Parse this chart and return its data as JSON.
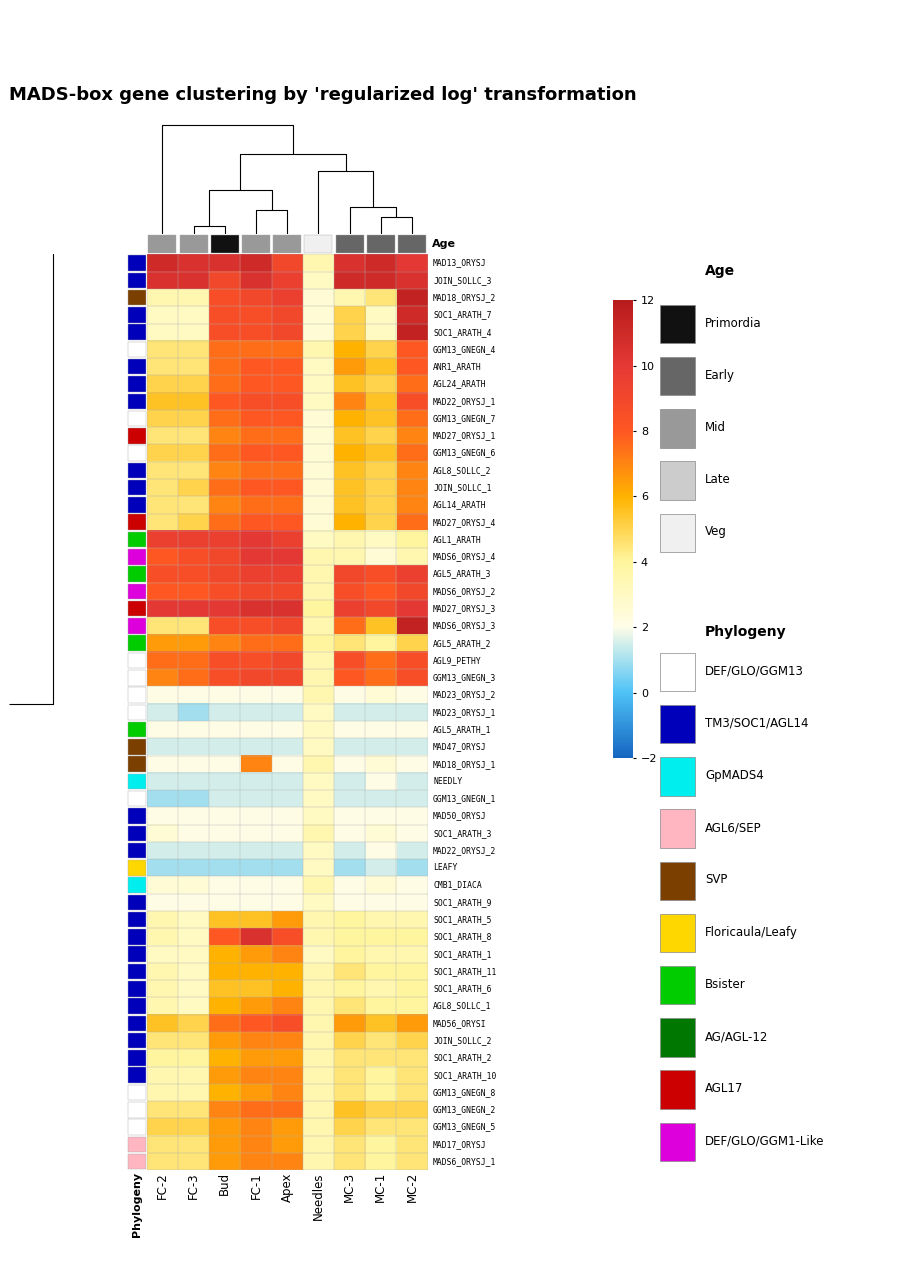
{
  "title": "MADS-box gene clustering by 'regularized log' transformation",
  "columns": [
    "FC-2",
    "FC-3",
    "Bud",
    "FC-1",
    "Apex",
    "Needles",
    "MC-3",
    "MC-1",
    "MC-2"
  ],
  "col_age": [
    "Mid",
    "Mid",
    "Primordia",
    "Mid",
    "Mid",
    "Veg",
    "Early",
    "Early",
    "Early"
  ],
  "genes": [
    "MADS6_ORYSJ_1",
    "MAD17_ORYSJ",
    "GGM13_GNEGN_5",
    "GGM13_GNEGN_2",
    "GGM13_GNEGN_8",
    "SOC1_ARATH_10",
    "SOC1_ARATH_2",
    "JOIN_SOLLC_2",
    "MAD56_ORYSI",
    "AGL8_SOLLC_1",
    "SOC1_ARATH_6",
    "SOC1_ARATH_11",
    "SOC1_ARATH_1",
    "SOC1_ARATH_8",
    "SOC1_ARATH_5",
    "SOC1_ARATH_9",
    "CMB1_DIACA",
    "LEAFY",
    "MAD22_ORYSJ_2",
    "SOC1_ARATH_3",
    "MAD50_ORYSJ",
    "GGM13_GNEGN_1",
    "NEEDLY",
    "MAD18_ORYSJ_1",
    "MAD47_ORYSJ",
    "AGL5_ARATH_1",
    "MAD23_ORYSJ_1",
    "MAD23_ORYSJ_2",
    "GGM13_GNEGN_3",
    "AGL9_PETHY",
    "AGL5_ARATH_2",
    "MADS6_ORYSJ_3",
    "MAD27_ORYSJ_3",
    "MADS6_ORYSJ_2",
    "AGL5_ARATH_3",
    "MADS6_ORYSJ_4",
    "AGL1_ARATH",
    "MAD27_ORYSJ_4",
    "AGL14_ARATH",
    "JOIN_SOLLC_1",
    "AGL8_SOLLC_2",
    "GGM13_GNEGN_6",
    "MAD27_ORYSJ_1",
    "GGM13_GNEGN_7",
    "MAD22_ORYSJ_1",
    "AGL24_ARATH",
    "ANR1_ARATH",
    "GGM13_GNEGN_4",
    "SOC1_ARATH_4",
    "SOC1_ARATH_7",
    "MAD18_ORYSJ_2",
    "JOIN_SOLLC_3",
    "MAD13_ORYSJ"
  ],
  "phylogeny": [
    "AGL6/SEP",
    "AGL6/SEP",
    "DEF/GLO/GGM13",
    "DEF/GLO/GGM13",
    "DEF/GLO/GGM13",
    "TM3/SOC1/AGL14",
    "TM3/SOC1/AGL14",
    "TM3/SOC1/AGL14",
    "TM3/SOC1/AGL14",
    "TM3/SOC1/AGL14",
    "TM3/SOC1/AGL14",
    "TM3/SOC1/AGL14",
    "TM3/SOC1/AGL14",
    "TM3/SOC1/AGL14",
    "TM3/SOC1/AGL14",
    "TM3/SOC1/AGL14",
    "GpMADS4",
    "Floricaula/Leafy",
    "TM3/SOC1/AGL14",
    "TM3/SOC1/AGL14",
    "TM3/SOC1/AGL14",
    "DEF/GLO/GGM13",
    "GpMADS4",
    "SVP",
    "SVP",
    "Bsister",
    "DEF/GLO/GGM13",
    "DEF/GLO/GGM13",
    "DEF/GLO/GGM13",
    "DEF/GLO/GGM13",
    "Bsister",
    "DEF/GLO/GGM1-Like",
    "AGL17",
    "DEF/GLO/GGM1-Like",
    "Bsister",
    "DEF/GLO/GGM1-Like",
    "Bsister",
    "AGL17",
    "TM3/SOC1/AGL14",
    "TM3/SOC1/AGL14",
    "TM3/SOC1/AGL14",
    "DEF/GLO/GGM13",
    "AGL17",
    "DEF/GLO/GGM13",
    "TM3/SOC1/AGL14",
    "TM3/SOC1/AGL14",
    "TM3/SOC1/AGL14",
    "DEF/GLO/GGM13",
    "TM3/SOC1/AGL14",
    "TM3/SOC1/AGL14",
    "SVP",
    "TM3/SOC1/AGL14",
    "TM3/SOC1/AGL14"
  ],
  "phylogeny_colors": {
    "DEF/GLO/GGM13": "#FFFFFF",
    "TM3/SOC1/AGL14": "#0000BB",
    "GpMADS4": "#00EEEE",
    "AGL6/SEP": "#FFB6C1",
    "SVP": "#7B3F00",
    "Floricaula/Leafy": "#FFD700",
    "Bsister": "#00CC00",
    "AG/AGL-12": "#007700",
    "AGL17": "#CC0000",
    "DEF/GLO/GGM1-Like": "#DD00DD"
  },
  "age_colors": {
    "Primordia": "#111111",
    "Early": "#666666",
    "Mid": "#999999",
    "Late": "#CCCCCC",
    "Veg": "#F0F0F0"
  },
  "heatmap_data": [
    [
      11.0,
      10.5,
      10.5,
      11.0,
      9.0,
      3.5,
      10.5,
      11.0,
      10.0
    ],
    [
      10.5,
      10.5,
      9.0,
      10.5,
      9.5,
      3.0,
      11.0,
      11.0,
      10.5
    ],
    [
      3.5,
      3.5,
      8.5,
      9.0,
      9.5,
      2.5,
      3.5,
      4.5,
      11.5
    ],
    [
      3.0,
      3.0,
      8.5,
      8.5,
      9.0,
      2.5,
      5.0,
      3.0,
      11.0
    ],
    [
      3.0,
      3.0,
      8.5,
      8.5,
      9.0,
      2.5,
      5.0,
      3.0,
      11.5
    ],
    [
      4.5,
      4.5,
      7.5,
      7.5,
      7.5,
      3.5,
      6.0,
      5.0,
      8.0
    ],
    [
      4.5,
      4.5,
      7.5,
      8.0,
      8.0,
      3.0,
      6.5,
      5.5,
      8.0
    ],
    [
      5.0,
      5.0,
      7.5,
      8.0,
      8.0,
      3.0,
      5.5,
      5.0,
      7.5
    ],
    [
      5.5,
      5.5,
      8.0,
      8.5,
      8.5,
      3.0,
      7.0,
      5.5,
      8.5
    ],
    [
      5.0,
      5.0,
      7.5,
      8.0,
      8.0,
      2.5,
      6.0,
      5.5,
      7.5
    ],
    [
      4.5,
      4.5,
      7.0,
      7.5,
      7.5,
      2.5,
      5.5,
      5.0,
      7.0
    ],
    [
      5.0,
      5.0,
      7.5,
      8.0,
      8.0,
      2.5,
      6.0,
      5.5,
      7.5
    ],
    [
      4.5,
      4.5,
      7.0,
      7.5,
      7.5,
      2.5,
      5.5,
      5.0,
      7.0
    ],
    [
      4.5,
      5.0,
      7.5,
      8.0,
      8.0,
      2.5,
      5.5,
      5.0,
      7.0
    ],
    [
      4.5,
      4.5,
      7.0,
      7.5,
      7.5,
      2.5,
      5.5,
      5.0,
      7.0
    ],
    [
      4.5,
      5.0,
      7.5,
      8.0,
      8.0,
      2.5,
      6.0,
      5.0,
      7.5
    ],
    [
      9.5,
      9.5,
      9.5,
      10.0,
      9.5,
      3.0,
      3.5,
      3.0,
      4.0
    ],
    [
      8.0,
      8.5,
      9.0,
      10.0,
      10.0,
      3.5,
      3.5,
      2.5,
      3.5
    ],
    [
      8.5,
      8.5,
      9.0,
      9.5,
      9.5,
      3.5,
      9.0,
      8.5,
      9.5
    ],
    [
      8.0,
      8.0,
      8.5,
      9.0,
      9.0,
      3.5,
      8.5,
      8.0,
      9.0
    ],
    [
      10.0,
      10.0,
      10.0,
      10.5,
      10.5,
      4.0,
      9.5,
      9.0,
      10.0
    ],
    [
      4.5,
      4.5,
      8.5,
      8.5,
      9.0,
      3.5,
      7.5,
      5.5,
      11.5
    ],
    [
      6.5,
      6.5,
      7.0,
      7.5,
      7.5,
      4.0,
      4.5,
      4.0,
      5.0
    ],
    [
      7.5,
      7.5,
      8.5,
      8.5,
      9.0,
      3.5,
      8.5,
      7.5,
      8.5
    ],
    [
      7.0,
      7.5,
      8.5,
      9.0,
      9.0,
      3.5,
      8.0,
      7.5,
      8.5
    ],
    [
      2.0,
      2.0,
      2.0,
      2.0,
      2.0,
      3.5,
      2.0,
      2.5,
      2.0
    ],
    [
      1.5,
      1.0,
      1.5,
      1.5,
      1.5,
      3.0,
      1.5,
      1.5,
      1.5
    ],
    [
      2.0,
      2.0,
      2.0,
      2.0,
      2.0,
      3.0,
      2.0,
      2.0,
      2.0
    ],
    [
      1.5,
      1.5,
      1.5,
      1.5,
      1.5,
      3.0,
      1.5,
      1.5,
      1.5
    ],
    [
      2.0,
      2.0,
      2.0,
      7.0,
      2.0,
      3.5,
      2.0,
      2.5,
      2.0
    ],
    [
      1.5,
      1.5,
      1.5,
      1.5,
      1.5,
      3.0,
      1.5,
      2.0,
      1.5
    ],
    [
      1.0,
      1.0,
      1.5,
      1.5,
      1.5,
      3.0,
      1.5,
      1.5,
      1.5
    ],
    [
      2.0,
      2.0,
      2.0,
      2.0,
      2.0,
      3.0,
      2.0,
      2.0,
      2.0
    ],
    [
      2.5,
      2.0,
      2.0,
      2.0,
      2.0,
      3.5,
      2.0,
      2.5,
      2.0
    ],
    [
      1.5,
      1.5,
      1.5,
      1.5,
      1.5,
      3.0,
      1.5,
      2.0,
      1.5
    ],
    [
      1.0,
      1.0,
      1.0,
      1.0,
      1.0,
      3.0,
      1.0,
      1.5,
      1.0
    ],
    [
      2.5,
      2.5,
      2.0,
      2.0,
      2.0,
      3.5,
      2.0,
      2.5,
      2.0
    ],
    [
      2.0,
      2.0,
      2.0,
      2.0,
      2.0,
      3.0,
      2.0,
      2.0,
      2.0
    ],
    [
      3.5,
      3.0,
      5.5,
      5.5,
      6.5,
      3.5,
      4.0,
      3.5,
      3.5
    ],
    [
      3.5,
      3.0,
      8.0,
      10.5,
      8.5,
      3.5,
      4.0,
      4.0,
      4.0
    ],
    [
      3.0,
      3.0,
      6.0,
      6.5,
      7.0,
      3.0,
      4.0,
      3.5,
      3.5
    ],
    [
      3.5,
      3.0,
      6.0,
      6.0,
      6.0,
      3.5,
      4.5,
      4.0,
      4.0
    ],
    [
      3.5,
      3.0,
      5.5,
      5.5,
      6.0,
      3.5,
      4.0,
      3.5,
      4.0
    ],
    [
      3.5,
      3.0,
      6.0,
      6.5,
      7.0,
      3.5,
      4.5,
      4.0,
      4.0
    ],
    [
      5.5,
      5.0,
      7.5,
      8.0,
      8.5,
      3.5,
      6.5,
      5.5,
      6.5
    ],
    [
      4.5,
      4.5,
      6.5,
      7.0,
      7.0,
      3.5,
      5.0,
      4.5,
      5.0
    ],
    [
      4.0,
      4.0,
      6.0,
      6.5,
      6.5,
      3.5,
      4.5,
      4.5,
      4.5
    ],
    [
      3.5,
      3.5,
      6.5,
      7.0,
      7.0,
      3.5,
      4.5,
      4.0,
      4.5
    ],
    [
      3.5,
      3.5,
      6.0,
      6.5,
      7.0,
      3.5,
      4.5,
      4.0,
      4.5
    ],
    [
      4.5,
      4.5,
      7.0,
      7.5,
      7.5,
      3.5,
      5.5,
      5.0,
      5.0
    ],
    [
      5.0,
      5.0,
      6.5,
      7.0,
      6.5,
      3.5,
      5.0,
      4.5,
      4.5
    ],
    [
      4.5,
      4.5,
      6.5,
      7.0,
      6.5,
      3.5,
      4.5,
      4.0,
      4.5
    ],
    [
      4.5,
      4.5,
      6.5,
      7.0,
      7.0,
      3.5,
      4.5,
      4.0,
      4.5
    ]
  ],
  "vmin": -2,
  "vmax": 12,
  "colorbar_ticks": [
    -2,
    0,
    2,
    4,
    6,
    8,
    10,
    12
  ]
}
